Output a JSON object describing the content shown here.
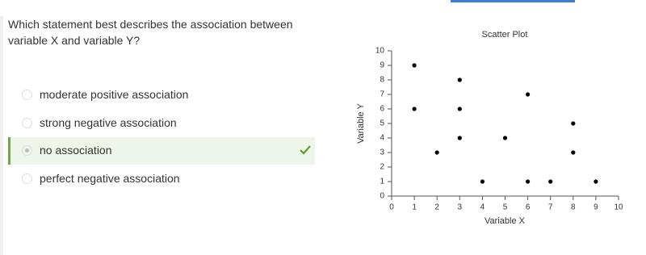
{
  "question": "Which statement best describes the association between variable X and variable Y?",
  "options": [
    "moderate positive association",
    "strong negative association",
    "no association",
    "perfect negative association"
  ],
  "chart_data": {
    "type": "scatter",
    "title": "Scatter Plot",
    "x_label": "Variable X",
    "y_label": "Variable Y",
    "x": [
      1,
      1,
      2,
      3,
      3,
      3,
      4,
      5,
      6,
      6,
      7,
      8,
      8,
      9
    ],
    "values": [
      9,
      6,
      3,
      8,
      6,
      4,
      1,
      4,
      7,
      1,
      1,
      5,
      3,
      1
    ],
    "color": "#000000",
    "xlim": [
      0,
      10
    ],
    "xticks": [
      0,
      1,
      2,
      3,
      4,
      5,
      6,
      7,
      8,
      9,
      10
    ],
    "ylim": [
      0,
      10
    ],
    "yticks": [
      0,
      1,
      2,
      3,
      4,
      5,
      6,
      7,
      8,
      9,
      10
    ],
    "grid": false
  }
}
